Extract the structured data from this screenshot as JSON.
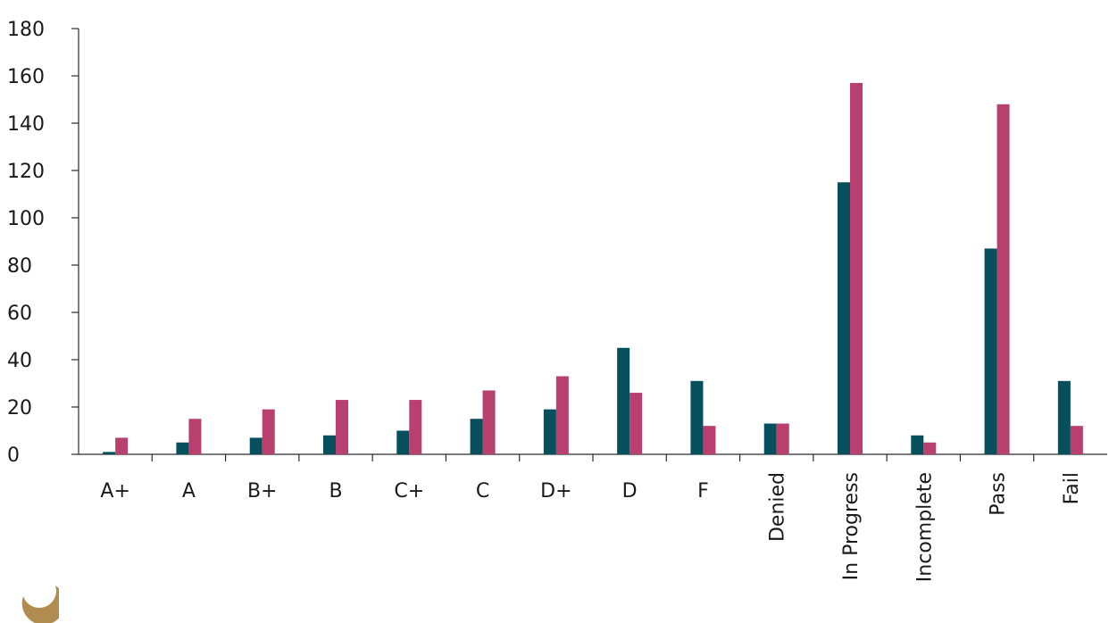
{
  "chart_data": {
    "type": "bar",
    "categories": [
      "A+",
      "A",
      "B+",
      "B",
      "C+",
      "C",
      "D+",
      "D",
      "F",
      "Denied",
      "In Progress",
      "Incomplete",
      "Pass",
      "Fail"
    ],
    "series": [
      {
        "values": [
          1,
          5,
          7,
          8,
          10,
          15,
          19,
          45,
          31,
          13,
          115,
          8,
          87,
          31
        ],
        "color": "#064f5c"
      },
      {
        "values": [
          7,
          15,
          19,
          23,
          23,
          27,
          33,
          26,
          12,
          13,
          157,
          5,
          148,
          12
        ],
        "color": "#b83f6e"
      }
    ],
    "yticks": [
      "0",
      "20",
      "40",
      "60",
      "80",
      "100",
      "120",
      "140",
      "160",
      "180"
    ],
    "ylim": [
      0,
      180
    ],
    "grid": false,
    "legend": "none",
    "title": "",
    "xlabel": "",
    "ylabel": ""
  },
  "logo": {
    "color": "#b08d4e",
    "icon": "crescent-logo-icon"
  }
}
